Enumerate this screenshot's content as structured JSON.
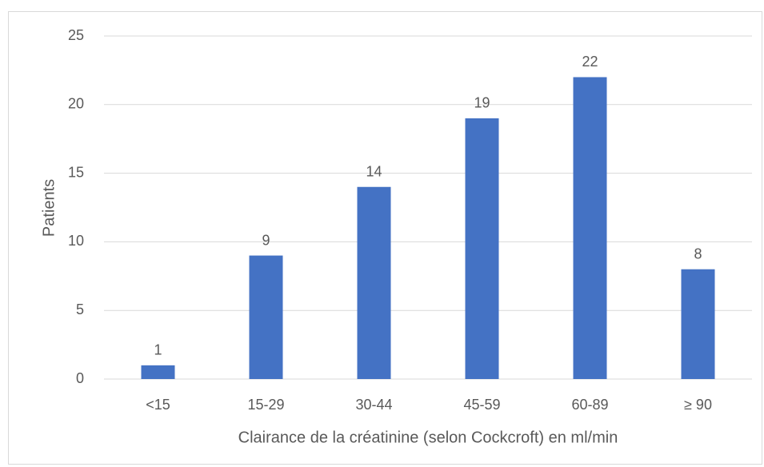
{
  "chart_data": {
    "type": "bar",
    "x_label": "Clairance de la créatinine (selon Cockcroft) en ml/min",
    "y_label": "Patients",
    "categories": [
      "<15",
      "15-29",
      "30-44",
      "45-59",
      "60-89",
      "≥ 90"
    ],
    "values": [
      1,
      9,
      14,
      19,
      22,
      8
    ],
    "color": "#4472c4",
    "ylim": [
      0,
      25
    ],
    "yticks": [
      0,
      5,
      10,
      15,
      20,
      25
    ],
    "grid": true,
    "data_labels": true
  }
}
